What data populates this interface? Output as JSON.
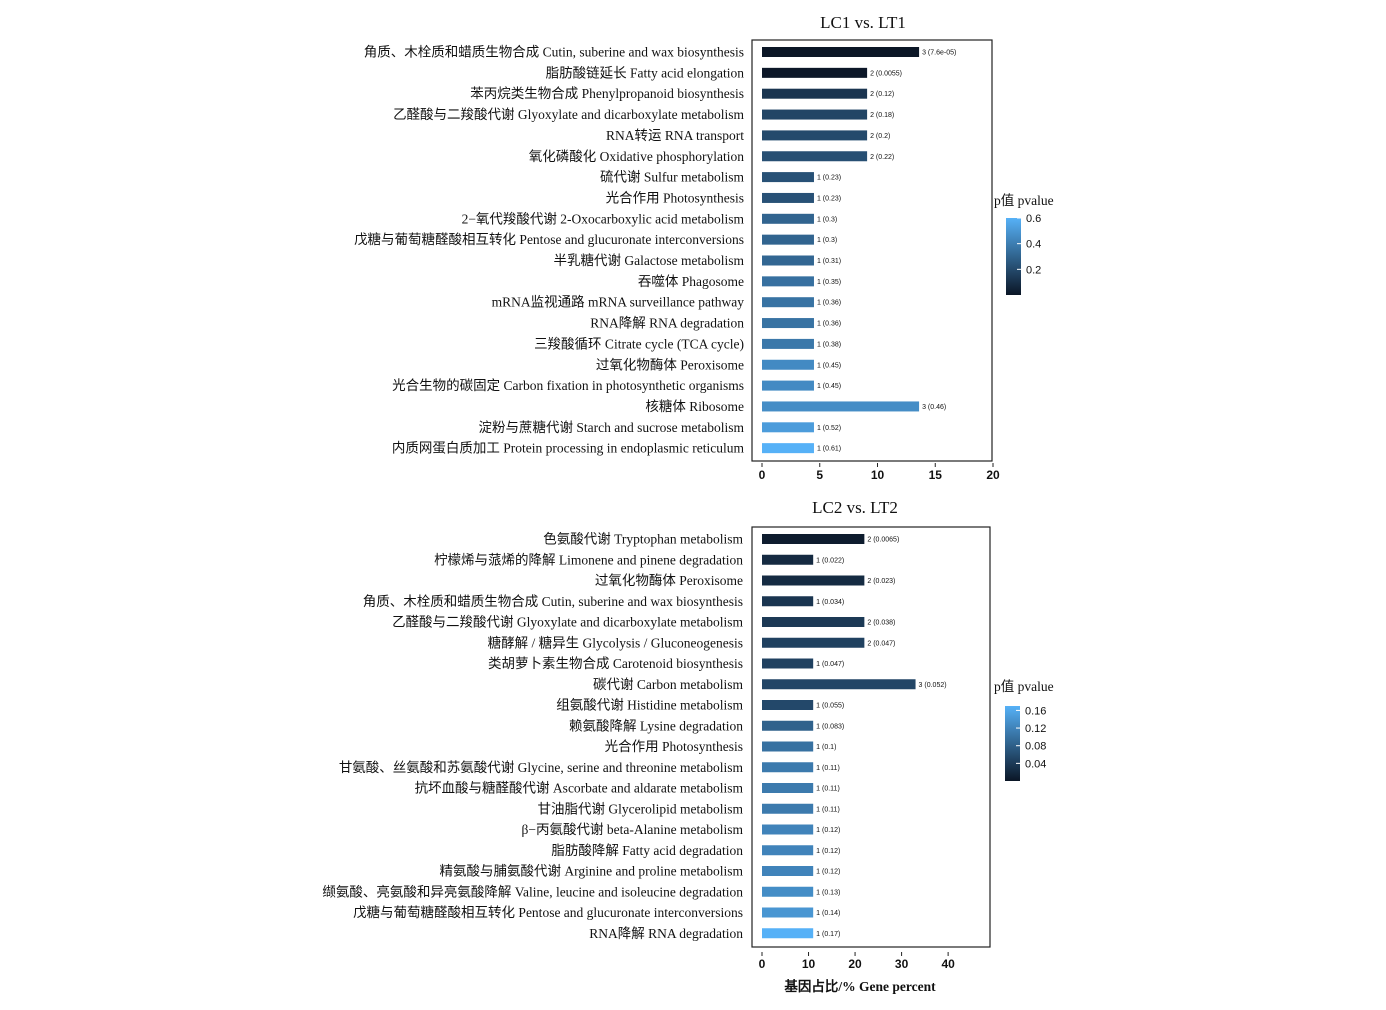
{
  "chart_data": [
    {
      "type": "bar",
      "orientation": "horizontal",
      "title": "LC1 vs. LT1",
      "xlabel": "",
      "xlim": [
        0,
        20
      ],
      "xticks": [
        "0",
        "5",
        "10",
        "15",
        "20"
      ],
      "legend": {
        "title": "p值 pvalue",
        "ticks": [
          "0.6",
          "0.4",
          "0.2"
        ],
        "range": [
          0,
          0.6
        ],
        "placement": "right"
      },
      "categories": [
        "角质、木栓质和蜡质生物合成 Cutin, suberine and wax biosynthesis",
        "脂肪酸链延长 Fatty acid elongation",
        "苯丙烷类生物合成 Phenylpropanoid biosynthesis",
        "乙醛酸与二羧酸代谢 Glyoxylate and dicarboxylate metabolism",
        "RNA转运 RNA transport",
        "氧化磷酸化 Oxidative phosphorylation",
        "硫代谢 Sulfur metabolism",
        "光合作用 Photosynthesis",
        "2−氧代羧酸代谢 2-Oxocarboxylic acid metabolism",
        "戊糖与葡萄糖醛酸相互转化 Pentose and glucuronate interconversions",
        "半乳糖代谢 Galactose metabolism",
        "吞噬体 Phagosome",
        "mRNA监视通路 mRNA surveillance pathway",
        "RNA降解 RNA degradation",
        "三羧酸循环 Citrate cycle (TCA cycle)",
        "过氧化物酶体 Peroxisome",
        "光合生物的碳固定 Carbon fixation in photosynthetic organisms",
        "核糖体 Ribosome",
        "淀粉与蔗糖代谢 Starch and sucrose metabolism",
        "内质网蛋白质加工 Protein processing in endoplasmic reticulum"
      ],
      "values": [
        13.6,
        9.1,
        9.1,
        9.1,
        9.1,
        9.1,
        4.5,
        4.5,
        4.5,
        4.5,
        4.5,
        4.5,
        4.5,
        4.5,
        4.5,
        4.5,
        4.5,
        13.6,
        4.5,
        4.5
      ],
      "pvalues": [
        7.6e-05,
        0.0055,
        0.12,
        0.18,
        0.2,
        0.22,
        0.23,
        0.23,
        0.3,
        0.3,
        0.31,
        0.35,
        0.36,
        0.36,
        0.38,
        0.45,
        0.45,
        0.46,
        0.52,
        0.61
      ],
      "data_labels": [
        "3 (7.6e-05)",
        "2 (0.0055)",
        "2 (0.12)",
        "2 (0.18)",
        "2 (0.2)",
        "2 (0.22)",
        "1 (0.23)",
        "1 (0.23)",
        "1 (0.3)",
        "1 (0.3)",
        "1 (0.31)",
        "1 (0.35)",
        "1 (0.36)",
        "1 (0.36)",
        "1 (0.38)",
        "1 (0.45)",
        "1 (0.45)",
        "3 (0.46)",
        "1 (0.52)",
        "1 (0.61)"
      ]
    },
    {
      "type": "bar",
      "orientation": "horizontal",
      "title": "LC2 vs. LT2",
      "xlabel": "基因占比/% Gene percent",
      "xlim": [
        0,
        49
      ],
      "xticks": [
        "0",
        "10",
        "20",
        "30",
        "40"
      ],
      "legend": {
        "title": "p值 pvalue",
        "ticks": [
          "0.16",
          "0.12",
          "0.08",
          "0.04"
        ],
        "range": [
          0,
          0.17
        ],
        "placement": "right"
      },
      "categories": [
        "色氨酸代谢 Tryptophan metabolism",
        "柠檬烯与蒎烯的降解 Limonene and pinene degradation",
        "过氧化物酶体 Peroxisome",
        "角质、木栓质和蜡质生物合成 Cutin, suberine and wax biosynthesis",
        "乙醛酸与二羧酸代谢 Glyoxylate and dicarboxylate metabolism",
        "糖酵解 / 糖异生 Glycolysis / Gluconeogenesis",
        "类胡萝卜素生物合成 Carotenoid biosynthesis",
        "碳代谢 Carbon metabolism",
        "组氨酸代谢 Histidine metabolism",
        "赖氨酸降解 Lysine degradation",
        "光合作用 Photosynthesis",
        "甘氨酸、丝氨酸和苏氨酸代谢 Glycine, serine and threonine metabolism",
        "抗坏血酸与糖醛酸代谢 Ascorbate and aldarate metabolism",
        "甘油脂代谢 Glycerolipid metabolism",
        "β−丙氨酸代谢 beta-Alanine metabolism",
        "脂肪酸降解 Fatty acid degradation",
        "精氨酸与脯氨酸代谢 Arginine and proline metabolism",
        "缬氨酸、亮氨酸和异亮氨酸降解 Valine, leucine and isoleucine degradation",
        "戊糖与葡萄糖醛酸相互转化 Pentose and glucuronate interconversions",
        "RNA降解 RNA degradation"
      ],
      "values": [
        22,
        11,
        22,
        11,
        22,
        22,
        11,
        33,
        11,
        11,
        11,
        11,
        11,
        11,
        11,
        11,
        11,
        11,
        11,
        11
      ],
      "pvalues": [
        0.0065,
        0.022,
        0.023,
        0.034,
        0.038,
        0.047,
        0.047,
        0.052,
        0.055,
        0.083,
        0.1,
        0.11,
        0.11,
        0.11,
        0.12,
        0.12,
        0.12,
        0.13,
        0.14,
        0.17
      ],
      "data_labels": [
        "2 (0.0065)",
        "1 (0.022)",
        "2 (0.023)",
        "1 (0.034)",
        "2 (0.038)",
        "2 (0.047)",
        "1 (0.047)",
        "3 (0.052)",
        "1 (0.055)",
        "1 (0.083)",
        "1 (0.1)",
        "1 (0.11)",
        "1 (0.11)",
        "1 (0.11)",
        "1 (0.12)",
        "1 (0.12)",
        "1 (0.12)",
        "1 (0.13)",
        "1 (0.14)",
        "1 (0.17)"
      ]
    }
  ],
  "colors": {
    "low": "#0b1626",
    "high": "#56b1f7",
    "axis": "#222222"
  }
}
